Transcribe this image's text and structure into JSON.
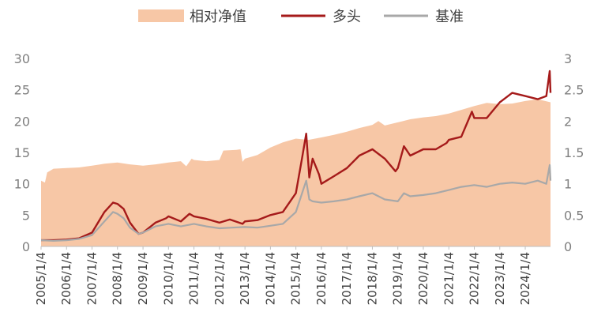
{
  "colors": {
    "relative_nav": "#f7c7a6",
    "long": "#a51a1a",
    "benchmark": "#a8a8a8",
    "axis": "#bfbfbf"
  },
  "legend": [
    {
      "label": "相对净值",
      "type": "area",
      "color": "#f7c7a6"
    },
    {
      "label": "多头",
      "type": "line",
      "color": "#a51a1a"
    },
    {
      "label": "基准",
      "type": "line",
      "color": "#a8a8a8"
    }
  ],
  "chart_data": {
    "type": "line",
    "legend_position": "top",
    "grid": false,
    "x_start": "2005/1/4",
    "x_end": "2024/12/31",
    "x_tick_labels": [
      "2005/1/4",
      "2006/1/4",
      "2007/1/4",
      "2008/1/4",
      "2009/1/4",
      "2010/1/4",
      "2011/1/4",
      "2012/1/4",
      "2013/1/4",
      "2014/1/4",
      "2015/1/4",
      "2016/1/4",
      "2017/1/4",
      "2018/1/4",
      "2019/1/4",
      "2020/1/4",
      "2021/1/4",
      "2022/1/4",
      "2023/1/4",
      "2024/1/4"
    ],
    "y_left": {
      "lim": [
        0,
        30
      ],
      "ticks": [
        "0",
        "5",
        "10",
        "15",
        "20",
        "25",
        "30"
      ]
    },
    "y_right": {
      "lim": [
        0,
        3
      ],
      "ticks": [
        "0",
        "0.5",
        "1",
        "1.5",
        "2",
        "2.5",
        "3"
      ]
    },
    "series": [
      {
        "name": "相对净值",
        "type": "area",
        "axis": "left",
        "points": [
          [
            "2005/1/4",
            10.5
          ],
          [
            "2005/3/1",
            10.2
          ],
          [
            "2005/4/1",
            11.8
          ],
          [
            "2005/7/1",
            12.4
          ],
          [
            "2006/1/4",
            12.5
          ],
          [
            "2006/7/1",
            12.6
          ],
          [
            "2007/1/4",
            12.9
          ],
          [
            "2007/7/1",
            13.2
          ],
          [
            "2008/1/4",
            13.4
          ],
          [
            "2008/7/1",
            13.1
          ],
          [
            "2009/1/4",
            12.9
          ],
          [
            "2009/7/1",
            13.1
          ],
          [
            "2010/1/4",
            13.4
          ],
          [
            "2010/7/1",
            13.6
          ],
          [
            "2010/9/15",
            12.8
          ],
          [
            "2010/12/1",
            14.0
          ],
          [
            "2011/1/4",
            13.8
          ],
          [
            "2011/7/1",
            13.6
          ],
          [
            "2012/1/4",
            13.8
          ],
          [
            "2012/3/1",
            15.3
          ],
          [
            "2012/9/1",
            15.4
          ],
          [
            "2012/11/1",
            15.5
          ],
          [
            "2012/12/1",
            13.5
          ],
          [
            "2013/1/4",
            14.0
          ],
          [
            "2013/7/1",
            14.6
          ],
          [
            "2014/1/4",
            15.8
          ],
          [
            "2014/7/1",
            16.6
          ],
          [
            "2015/1/4",
            17.2
          ],
          [
            "2015/7/1",
            17.0
          ],
          [
            "2016/1/4",
            17.4
          ],
          [
            "2016/7/1",
            17.8
          ],
          [
            "2017/1/4",
            18.3
          ],
          [
            "2017/7/1",
            18.9
          ],
          [
            "2018/1/4",
            19.4
          ],
          [
            "2018/4/1",
            20.0
          ],
          [
            "2018/7/1",
            19.3
          ],
          [
            "2019/1/4",
            19.8
          ],
          [
            "2019/7/1",
            20.3
          ],
          [
            "2020/1/4",
            20.6
          ],
          [
            "2020/7/1",
            20.8
          ],
          [
            "2021/1/4",
            21.2
          ],
          [
            "2021/7/1",
            21.8
          ],
          [
            "2022/1/4",
            22.4
          ],
          [
            "2022/7/1",
            22.9
          ],
          [
            "2023/1/4",
            22.7
          ],
          [
            "2023/7/1",
            22.8
          ],
          [
            "2024/1/4",
            23.2
          ],
          [
            "2024/7/1",
            23.5
          ],
          [
            "2024/12/31",
            23.0
          ]
        ]
      },
      {
        "name": "多头",
        "type": "line",
        "axis": "right",
        "points": [
          [
            "2005/1/4",
            0.1
          ],
          [
            "2005/7/1",
            0.1
          ],
          [
            "2006/1/4",
            0.11
          ],
          [
            "2006/7/1",
            0.13
          ],
          [
            "2007/1/4",
            0.22
          ],
          [
            "2007/7/1",
            0.55
          ],
          [
            "2007/11/1",
            0.7
          ],
          [
            "2008/1/4",
            0.68
          ],
          [
            "2008/4/1",
            0.6
          ],
          [
            "2008/7/1",
            0.38
          ],
          [
            "2008/11/1",
            0.2
          ],
          [
            "2009/1/4",
            0.22
          ],
          [
            "2009/7/1",
            0.38
          ],
          [
            "2009/12/1",
            0.45
          ],
          [
            "2010/1/4",
            0.48
          ],
          [
            "2010/7/1",
            0.4
          ],
          [
            "2010/11/1",
            0.52
          ],
          [
            "2011/1/4",
            0.48
          ],
          [
            "2011/7/1",
            0.44
          ],
          [
            "2012/1/4",
            0.38
          ],
          [
            "2012/6/1",
            0.43
          ],
          [
            "2012/12/1",
            0.36
          ],
          [
            "2013/1/4",
            0.4
          ],
          [
            "2013/7/1",
            0.42
          ],
          [
            "2014/1/4",
            0.5
          ],
          [
            "2014/7/1",
            0.55
          ],
          [
            "2015/1/4",
            0.85
          ],
          [
            "2015/4/1",
            1.4
          ],
          [
            "2015/6/1",
            1.8
          ],
          [
            "2015/7/15",
            1.1
          ],
          [
            "2015/9/1",
            1.4
          ],
          [
            "2015/12/1",
            1.15
          ],
          [
            "2016/1/4",
            1.0
          ],
          [
            "2016/7/1",
            1.12
          ],
          [
            "2017/1/4",
            1.25
          ],
          [
            "2017/7/1",
            1.45
          ],
          [
            "2018/1/4",
            1.55
          ],
          [
            "2018/7/1",
            1.4
          ],
          [
            "2018/12/1",
            1.2
          ],
          [
            "2019/1/4",
            1.25
          ],
          [
            "2019/4/1",
            1.6
          ],
          [
            "2019/7/1",
            1.45
          ],
          [
            "2020/1/4",
            1.55
          ],
          [
            "2020/7/1",
            1.55
          ],
          [
            "2020/12/1",
            1.65
          ],
          [
            "2021/1/4",
            1.7
          ],
          [
            "2021/7/1",
            1.75
          ],
          [
            "2021/12/1",
            2.15
          ],
          [
            "2022/1/4",
            2.05
          ],
          [
            "2022/7/1",
            2.05
          ],
          [
            "2023/1/4",
            2.3
          ],
          [
            "2023/7/1",
            2.45
          ],
          [
            "2024/1/4",
            2.4
          ],
          [
            "2024/7/1",
            2.35
          ],
          [
            "2024/11/1",
            2.4
          ],
          [
            "2024/12/20",
            2.8
          ],
          [
            "2024/12/31",
            2.45
          ]
        ]
      },
      {
        "name": "基准",
        "type": "line",
        "axis": "right",
        "points": [
          [
            "2005/1/4",
            0.1
          ],
          [
            "2005/7/1",
            0.09
          ],
          [
            "2006/1/4",
            0.1
          ],
          [
            "2006/7/1",
            0.12
          ],
          [
            "2007/1/4",
            0.18
          ],
          [
            "2007/7/1",
            0.4
          ],
          [
            "2007/11/1",
            0.55
          ],
          [
            "2008/1/4",
            0.52
          ],
          [
            "2008/4/1",
            0.45
          ],
          [
            "2008/7/1",
            0.3
          ],
          [
            "2008/11/1",
            0.2
          ],
          [
            "2009/1/4",
            0.22
          ],
          [
            "2009/7/1",
            0.32
          ],
          [
            "2010/1/4",
            0.36
          ],
          [
            "2010/7/1",
            0.32
          ],
          [
            "2011/1/4",
            0.36
          ],
          [
            "2011/7/1",
            0.32
          ],
          [
            "2012/1/4",
            0.29
          ],
          [
            "2012/7/1",
            0.3
          ],
          [
            "2013/1/4",
            0.31
          ],
          [
            "2013/7/1",
            0.3
          ],
          [
            "2014/1/4",
            0.33
          ],
          [
            "2014/7/1",
            0.36
          ],
          [
            "2015/1/4",
            0.55
          ],
          [
            "2015/6/1",
            1.05
          ],
          [
            "2015/7/15",
            0.75
          ],
          [
            "2015/9/1",
            0.72
          ],
          [
            "2016/1/4",
            0.7
          ],
          [
            "2016/7/1",
            0.72
          ],
          [
            "2017/1/4",
            0.75
          ],
          [
            "2017/7/1",
            0.8
          ],
          [
            "2018/1/4",
            0.85
          ],
          [
            "2018/7/1",
            0.75
          ],
          [
            "2019/1/4",
            0.72
          ],
          [
            "2019/4/1",
            0.85
          ],
          [
            "2019/7/1",
            0.8
          ],
          [
            "2020/1/4",
            0.82
          ],
          [
            "2020/7/1",
            0.85
          ],
          [
            "2021/1/4",
            0.9
          ],
          [
            "2021/7/1",
            0.95
          ],
          [
            "2022/1/4",
            0.98
          ],
          [
            "2022/7/1",
            0.95
          ],
          [
            "2023/1/4",
            1.0
          ],
          [
            "2023/7/1",
            1.02
          ],
          [
            "2024/1/4",
            1.0
          ],
          [
            "2024/7/1",
            1.05
          ],
          [
            "2024/11/1",
            1.0
          ],
          [
            "2024/12/20",
            1.3
          ],
          [
            "2024/12/31",
            1.05
          ]
        ]
      }
    ]
  }
}
